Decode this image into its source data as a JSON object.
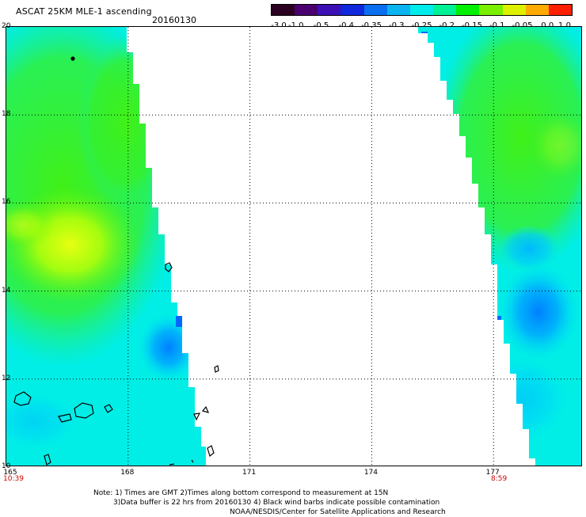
{
  "header": {
    "title": "ASCAT 25KM MLE-1 ascending",
    "date": "20160130"
  },
  "colorbar": {
    "labels": [
      "-3.0",
      "-1.0",
      "-0.5",
      "-0.4",
      "-0.35",
      "-0.3",
      "-0.25",
      "-0.2",
      "-0.15",
      "-0.1",
      "-0.05",
      "0.0",
      "1.0"
    ],
    "colors": [
      "#2a0020",
      "#4a006e",
      "#3c10b4",
      "#0f28dc",
      "#0a6ef0",
      "#0ab4f0",
      "#00ecec",
      "#00f096",
      "#00f000",
      "#78f000",
      "#dcf000",
      "#ffaa00",
      "#ff1e00"
    ]
  },
  "axes": {
    "lat_labels": [
      "20",
      "18",
      "16",
      "14",
      "12",
      "10"
    ],
    "lon_labels": [
      "165",
      "168",
      "171",
      "174",
      "177"
    ],
    "lat_range": [
      10,
      20
    ],
    "lon_range": [
      165,
      179.2
    ],
    "start_time": "10:39",
    "end_time": "8:59"
  },
  "map": {
    "swaths": [
      {
        "name": "west-swath",
        "lat_top": 20,
        "lat_bottom": 10,
        "lon_west": 165,
        "lon_east_top": 167.9,
        "lon_east_bottom": 169.3
      },
      {
        "name": "east-swath",
        "lat_top": 20,
        "lat_bottom": 10,
        "lon_west_top": 175.2,
        "lon_west_bottom": 177.6,
        "lon_east": 179.2
      }
    ],
    "colors": {
      "background": "#00f0e0",
      "green": "#30f020",
      "yellow": "#ccff00",
      "blue": "#00aaff",
      "deep_blue": "#0060ff"
    }
  },
  "notes": {
    "line1": "Note: 1) Times are GMT 2)Times along bottom correspond to measurement at 15N",
    "line2": "3)Data buffer is 22 hrs from 20160130 4) Black wind barbs indicate possible contamination",
    "line3": "NOAA/NESDIS/Center for Satellite Applications and Research"
  }
}
